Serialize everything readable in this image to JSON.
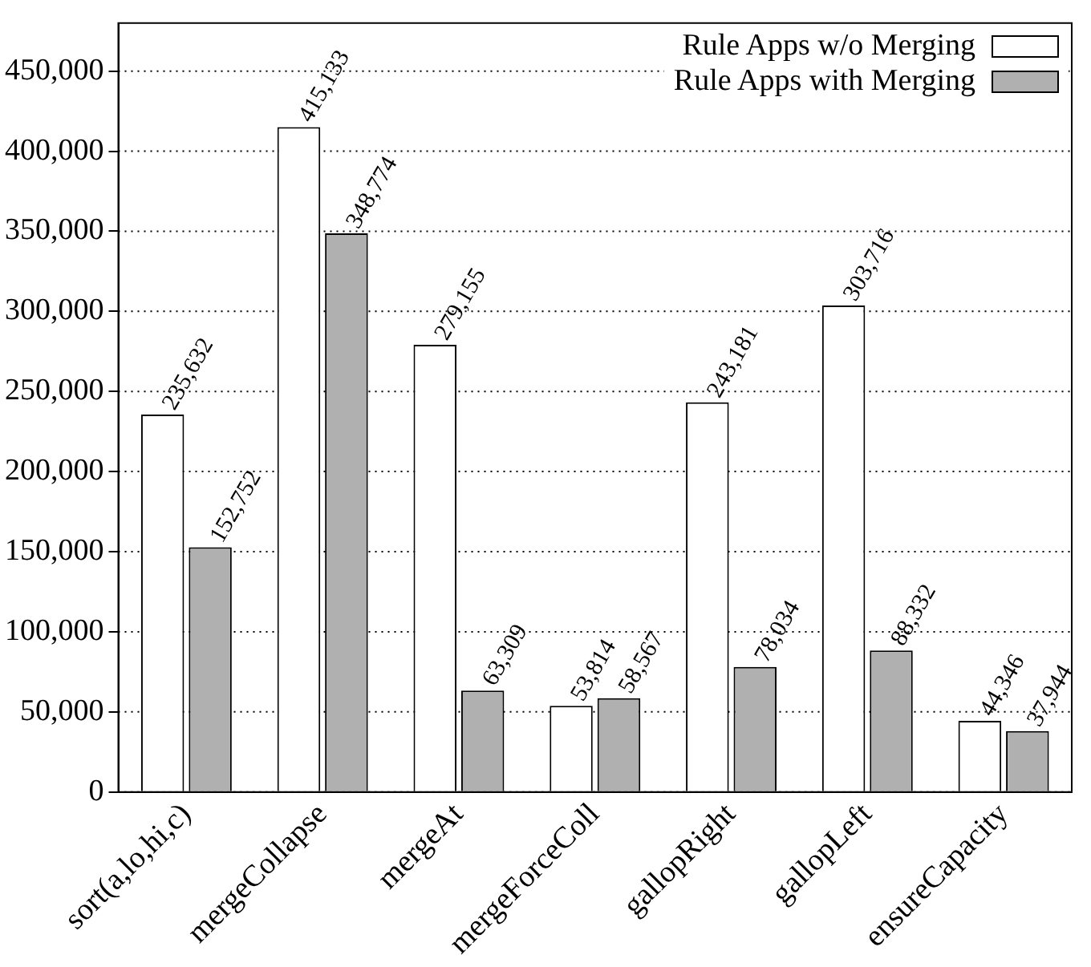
{
  "chart_data": {
    "type": "bar",
    "categories": [
      "sort(a,lo,hi,c)",
      "mergeCollapse",
      "mergeAt",
      "mergeForceColl",
      "gallopRight",
      "gallopLeft",
      "ensureCapacity"
    ],
    "series": [
      {
        "name": "Rule Apps w/o Merging",
        "color": "#ffffff",
        "values": [
          235632,
          415133,
          279155,
          53814,
          243181,
          303716,
          44346
        ],
        "value_labels": [
          "235,632",
          "415,133",
          "279,155",
          "53,814",
          "243,181",
          "303,716",
          "44,346"
        ]
      },
      {
        "name": "Rule Apps with Merging",
        "color": "#b0b0b0",
        "values": [
          152752,
          348774,
          63309,
          58567,
          78034,
          88332,
          37944
        ],
        "value_labels": [
          "152,752",
          "348,774",
          "63,309",
          "58,567",
          "78,034",
          "88,332",
          "37,944"
        ]
      }
    ],
    "ylim": [
      0,
      480000
    ],
    "yticks": [
      {
        "value": 0,
        "label": "0"
      },
      {
        "value": 50000,
        "label": "50,000"
      },
      {
        "value": 100000,
        "label": "100,000"
      },
      {
        "value": 150000,
        "label": "150,000"
      },
      {
        "value": 200000,
        "label": "200,000"
      },
      {
        "value": 250000,
        "label": "250,000"
      },
      {
        "value": 300000,
        "label": "300,000"
      },
      {
        "value": 350000,
        "label": "350,000"
      },
      {
        "value": 400000,
        "label": "400,000"
      },
      {
        "value": 450000,
        "label": "450,000"
      }
    ],
    "grid": "y",
    "legend": "top right"
  }
}
